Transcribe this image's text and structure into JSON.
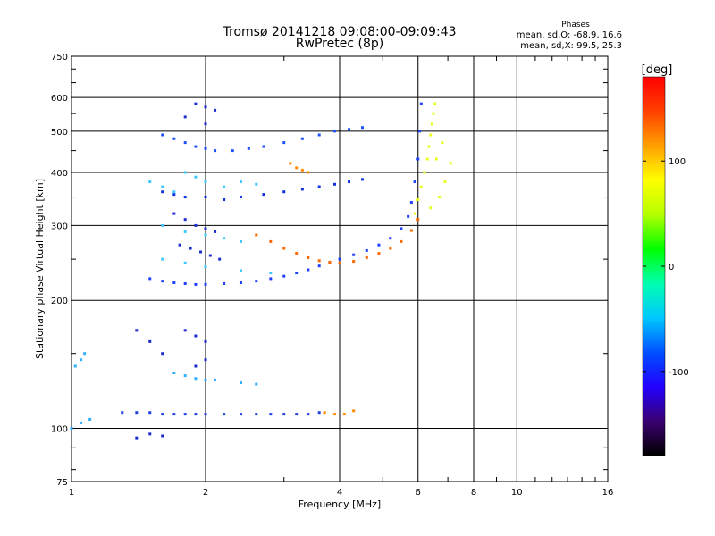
{
  "header": {
    "title_line1": "Tromsø 20141218 09:08:00-09:09:43",
    "title_line2": "RwPretec (8p)",
    "stats_title": "Phases",
    "stats_o": "mean, sd,O: -68.9, 16.6",
    "stats_x": "mean, sd,X:  99.5, 25.3"
  },
  "colorbar": {
    "label": "[deg]",
    "ticks": [
      {
        "value": 100,
        "label": "100"
      },
      {
        "value": 0,
        "label": "0"
      },
      {
        "value": -100,
        "label": "-100"
      }
    ],
    "range": [
      -180,
      180
    ],
    "colors": [
      "#000000",
      "#3a0070",
      "#2200ff",
      "#0050ff",
      "#00c8ff",
      "#00ffb0",
      "#00ff00",
      "#b4ff00",
      "#ffff00",
      "#ffa000",
      "#ff4000",
      "#ff0000"
    ]
  },
  "chart_data": {
    "type": "scatter",
    "title": "Tromsø 20141218 09:08:00-09:09:43",
    "subtitle": "RwPretec (8p)",
    "xlabel": "Frequency [MHz]",
    "ylabel": "Stationary phase Virtual Height [km]",
    "x_scale": "log",
    "y_scale": "log",
    "xlim": [
      1,
      16
    ],
    "ylim": [
      75,
      750
    ],
    "grid": true,
    "x_ticks": [
      1,
      2,
      4,
      6,
      8,
      10,
      16
    ],
    "x_tick_labels": [
      "1",
      "2",
      "4",
      "6",
      "8",
      "10",
      "16"
    ],
    "y_ticks": [
      75,
      100,
      200,
      300,
      400,
      500,
      600,
      750
    ],
    "y_tick_labels": [
      "75",
      "100",
      "200",
      "300",
      "400",
      "500",
      "600",
      "750"
    ],
    "series": [
      {
        "color": "#1e50ff",
        "phase": -85,
        "points": [
          [
            1.6,
            490
          ],
          [
            1.7,
            480
          ],
          [
            1.8,
            470
          ],
          [
            1.9,
            460
          ],
          [
            2.0,
            455
          ],
          [
            2.1,
            450
          ],
          [
            2.3,
            450
          ],
          [
            2.5,
            455
          ],
          [
            2.7,
            460
          ],
          [
            3.0,
            470
          ],
          [
            3.3,
            480
          ],
          [
            3.6,
            490
          ],
          [
            3.9,
            500
          ],
          [
            4.2,
            505
          ],
          [
            4.5,
            510
          ]
        ]
      },
      {
        "color": "#1030e0",
        "phase": -95,
        "points": [
          [
            1.6,
            360
          ],
          [
            1.7,
            355
          ],
          [
            1.8,
            350
          ],
          [
            2.0,
            350
          ],
          [
            2.2,
            345
          ],
          [
            2.4,
            350
          ],
          [
            2.7,
            355
          ],
          [
            3.0,
            360
          ],
          [
            3.3,
            365
          ],
          [
            3.6,
            370
          ],
          [
            3.9,
            375
          ],
          [
            4.2,
            380
          ],
          [
            4.5,
            385
          ]
        ]
      },
      {
        "color": "#2040ff",
        "phase": -90,
        "points": [
          [
            1.5,
            225
          ],
          [
            1.6,
            222
          ],
          [
            1.7,
            220
          ],
          [
            1.8,
            219
          ],
          [
            1.9,
            218
          ],
          [
            2.0,
            218
          ],
          [
            2.2,
            219
          ],
          [
            2.4,
            220
          ],
          [
            2.6,
            222
          ],
          [
            2.8,
            225
          ],
          [
            3.0,
            228
          ],
          [
            3.2,
            232
          ],
          [
            3.4,
            236
          ],
          [
            3.6,
            241
          ],
          [
            3.8,
            245
          ],
          [
            4.0,
            250
          ],
          [
            4.3,
            256
          ],
          [
            4.6,
            262
          ],
          [
            4.9,
            270
          ],
          [
            5.2,
            280
          ],
          [
            5.5,
            295
          ],
          [
            5.7,
            315
          ],
          [
            5.8,
            340
          ],
          [
            5.9,
            380
          ],
          [
            6.0,
            430
          ],
          [
            6.05,
            500
          ],
          [
            6.1,
            580
          ]
        ]
      },
      {
        "color": "#ff6a00",
        "phase": 150,
        "points": [
          [
            2.6,
            285
          ],
          [
            2.8,
            275
          ],
          [
            3.0,
            265
          ],
          [
            3.2,
            258
          ],
          [
            3.4,
            252
          ],
          [
            3.6,
            248
          ],
          [
            3.8,
            246
          ],
          [
            4.0,
            245
          ],
          [
            4.3,
            247
          ],
          [
            4.6,
            252
          ],
          [
            4.9,
            258
          ],
          [
            5.2,
            265
          ],
          [
            5.5,
            275
          ],
          [
            5.8,
            292
          ],
          [
            6.0,
            310
          ]
        ]
      },
      {
        "color": "#e8ff20",
        "phase": 95,
        "points": [
          [
            5.9,
            320
          ],
          [
            6.0,
            345
          ],
          [
            6.1,
            370
          ],
          [
            6.2,
            400
          ],
          [
            6.3,
            430
          ],
          [
            6.35,
            460
          ],
          [
            6.4,
            490
          ],
          [
            6.45,
            520
          ],
          [
            6.5,
            550
          ],
          [
            6.55,
            580
          ],
          [
            6.7,
            350
          ],
          [
            6.9,
            380
          ],
          [
            7.1,
            420
          ],
          [
            6.8,
            470
          ],
          [
            6.6,
            430
          ],
          [
            6.4,
            330
          ]
        ]
      },
      {
        "color": "#40c8ff",
        "phase": -50,
        "points": [
          [
            1.5,
            380
          ],
          [
            1.6,
            370
          ],
          [
            1.7,
            360
          ],
          [
            1.8,
            400
          ],
          [
            1.9,
            390
          ],
          [
            2.0,
            380
          ],
          [
            2.2,
            370
          ],
          [
            2.4,
            380
          ],
          [
            2.6,
            375
          ],
          [
            1.6,
            300
          ],
          [
            1.8,
            290
          ],
          [
            2.0,
            285
          ],
          [
            2.2,
            280
          ],
          [
            2.4,
            275
          ],
          [
            1.6,
            250
          ],
          [
            1.8,
            245
          ],
          [
            2.0,
            240
          ],
          [
            2.4,
            235
          ],
          [
            2.8,
            232
          ]
        ]
      },
      {
        "color": "#2030d0",
        "phase": -105,
        "points": [
          [
            1.7,
            320
          ],
          [
            1.8,
            310
          ],
          [
            1.9,
            300
          ],
          [
            2.0,
            295
          ],
          [
            2.1,
            290
          ],
          [
            1.75,
            270
          ],
          [
            1.85,
            265
          ],
          [
            1.95,
            260
          ],
          [
            2.05,
            255
          ],
          [
            2.15,
            250
          ],
          [
            1.9,
            580
          ],
          [
            2.0,
            570
          ],
          [
            2.1,
            560
          ],
          [
            1.8,
            540
          ],
          [
            2.0,
            520
          ]
        ]
      },
      {
        "color": "#2040e0",
        "phase": -95,
        "points": [
          [
            1.3,
            109
          ],
          [
            1.4,
            109
          ],
          [
            1.5,
            109
          ],
          [
            1.6,
            108
          ],
          [
            1.7,
            108
          ],
          [
            1.8,
            108
          ],
          [
            1.9,
            108
          ],
          [
            2.0,
            108
          ],
          [
            2.2,
            108
          ],
          [
            2.4,
            108
          ],
          [
            2.6,
            108
          ],
          [
            2.8,
            108
          ],
          [
            3.0,
            108
          ],
          [
            3.2,
            108
          ],
          [
            3.4,
            108
          ],
          [
            3.6,
            109
          ]
        ]
      },
      {
        "color": "#30b0ff",
        "phase": -60,
        "points": [
          [
            1.7,
            135
          ],
          [
            1.8,
            133
          ],
          [
            1.9,
            131
          ],
          [
            2.0,
            130
          ],
          [
            2.1,
            130
          ],
          [
            2.4,
            128
          ],
          [
            2.6,
            127
          ],
          [
            1.02,
            140
          ],
          [
            1.05,
            145
          ],
          [
            1.07,
            150
          ],
          [
            1.0,
            100
          ],
          [
            1.05,
            103
          ],
          [
            1.1,
            105
          ]
        ]
      },
      {
        "color": "#ff8c00",
        "phase": 140,
        "points": [
          [
            3.1,
            420
          ],
          [
            3.2,
            410
          ],
          [
            3.3,
            405
          ],
          [
            3.4,
            400
          ],
          [
            4.1,
            108
          ],
          [
            4.3,
            110
          ],
          [
            3.9,
            108
          ],
          [
            3.7,
            109
          ]
        ]
      },
      {
        "color": "#1a2ad0",
        "phase": -110,
        "points": [
          [
            1.4,
            170
          ],
          [
            1.5,
            160
          ],
          [
            1.6,
            150
          ],
          [
            1.8,
            170
          ],
          [
            1.9,
            165
          ],
          [
            2.0,
            160
          ],
          [
            1.9,
            140
          ],
          [
            2.0,
            145
          ],
          [
            1.4,
            95
          ],
          [
            1.5,
            97
          ],
          [
            1.6,
            96
          ]
        ]
      }
    ]
  }
}
